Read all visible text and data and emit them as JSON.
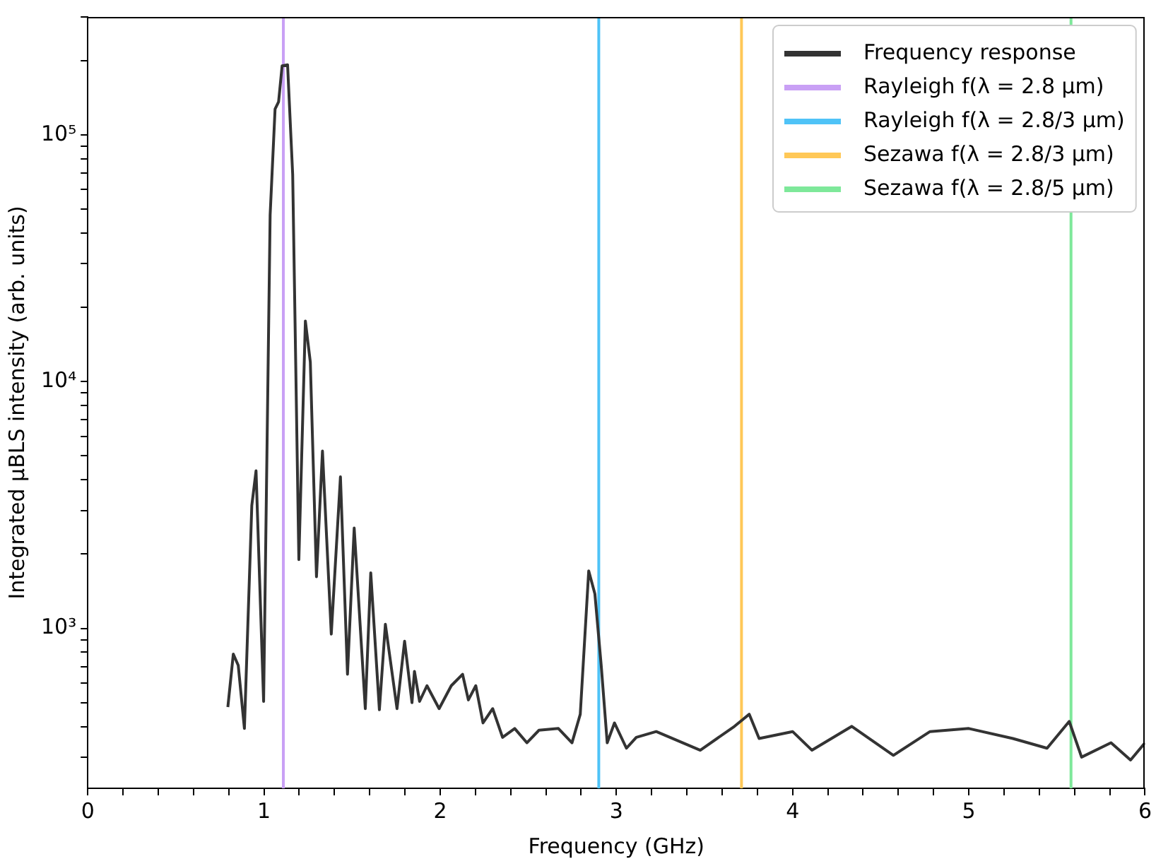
{
  "chart_data": {
    "type": "line",
    "xlabel": "Frequency (GHz)",
    "ylabel": "Integrated µBLS intensity (arb. units)",
    "log": "y",
    "legend": "top right",
    "grid": false,
    "marker": "none",
    "line_style": "solid",
    "xlim": [
      0,
      6
    ],
    "xticks": [
      0,
      {
        "value": 0.2,
        "label": null
      },
      {
        "value": 0.4,
        "label": null
      },
      {
        "value": 0.6,
        "label": null
      },
      {
        "value": 0.8,
        "label": null
      },
      1,
      {
        "value": 1.2,
        "label": null
      },
      {
        "value": 1.4,
        "label": null
      },
      {
        "value": 1.6,
        "label": null
      },
      {
        "value": 1.8,
        "label": null
      },
      2,
      {
        "value": 2.2,
        "label": null
      },
      {
        "value": 2.4,
        "label": null
      },
      {
        "value": 2.6,
        "label": null
      },
      {
        "value": 2.8,
        "label": null
      },
      3,
      {
        "value": 3.2,
        "label": null
      },
      {
        "value": 3.4,
        "label": null
      },
      {
        "value": 3.6,
        "label": null
      },
      {
        "value": 3.8,
        "label": null
      },
      4,
      {
        "value": 4.2,
        "label": null
      },
      {
        "value": 4.4,
        "label": null
      },
      {
        "value": 4.6,
        "label": null
      },
      {
        "value": 4.8,
        "label": null
      },
      5,
      {
        "value": 5.2,
        "label": null
      },
      {
        "value": 5.4,
        "label": null
      },
      {
        "value": 5.6,
        "label": null
      },
      {
        "value": 5.8,
        "label": null
      },
      6
    ],
    "ylim": [
      225,
      300000
    ],
    "yticks": [
      {
        "value": 300,
        "label": null
      },
      {
        "value": 400,
        "label": null
      },
      {
        "value": 500,
        "label": null
      },
      {
        "value": 600,
        "label": null
      },
      {
        "value": 700,
        "label": null
      },
      {
        "value": 800,
        "label": null
      },
      {
        "value": 900,
        "label": null
      },
      {
        "value": 1000,
        "label": "10³"
      },
      {
        "value": 2000,
        "label": null
      },
      {
        "value": 3000,
        "label": null
      },
      {
        "value": 4000,
        "label": null
      },
      {
        "value": 5000,
        "label": null
      },
      {
        "value": 6000,
        "label": null
      },
      {
        "value": 7000,
        "label": null
      },
      {
        "value": 8000,
        "label": null
      },
      {
        "value": 9000,
        "label": null
      },
      {
        "value": 10000,
        "label": "10⁴"
      },
      {
        "value": 20000,
        "label": null
      },
      {
        "value": 30000,
        "label": null
      },
      {
        "value": 40000,
        "label": null
      },
      {
        "value": 50000,
        "label": null
      },
      {
        "value": 60000,
        "label": null
      },
      {
        "value": 70000,
        "label": null
      },
      {
        "value": 80000,
        "label": null
      },
      {
        "value": 90000,
        "label": null
      },
      {
        "value": 100000,
        "label": "10⁵"
      },
      {
        "value": 200000,
        "label": null
      },
      {
        "value": 300000,
        "label": null
      }
    ],
    "series": [
      {
        "name": "Frequency response",
        "color": "#333333",
        "x": [
          0.795,
          0.826,
          0.854,
          0.889,
          0.931,
          0.955,
          0.998,
          1.035,
          1.063,
          1.083,
          1.103,
          1.134,
          1.163,
          1.198,
          1.235,
          1.263,
          1.298,
          1.332,
          1.382,
          1.434,
          1.474,
          1.512,
          1.575,
          1.606,
          1.655,
          1.689,
          1.755,
          1.798,
          1.84,
          1.854,
          1.883,
          1.925,
          1.994,
          2.063,
          2.127,
          2.16,
          2.202,
          2.243,
          2.298,
          2.354,
          2.423,
          2.492,
          2.561,
          2.671,
          2.748,
          2.795,
          2.843,
          2.878,
          2.914,
          2.948,
          2.989,
          3.057,
          3.113,
          3.226,
          3.476,
          3.67,
          3.754,
          3.81,
          4.0,
          4.11,
          4.336,
          4.572,
          4.78,
          5.0,
          5.25,
          5.444,
          5.57,
          5.64,
          5.807,
          5.918,
          6.0
        ],
        "values": [
          480,
          787,
          708,
          393,
          3150,
          4350,
          506,
          47300,
          127000,
          136000,
          190000,
          192000,
          68800,
          1900,
          17600,
          12000,
          1620,
          5230,
          948,
          4110,
          652,
          2550,
          473,
          1680,
          468,
          1040,
          473,
          888,
          500,
          670,
          506,
          586,
          473,
          586,
          652,
          513,
          586,
          414,
          473,
          362,
          393,
          344,
          387,
          393,
          344,
          449,
          1710,
          1380,
          706,
          344,
          414,
          327,
          362,
          382,
          321,
          401,
          449,
          358,
          382,
          321,
          401,
          306,
          382,
          393,
          358,
          327,
          420,
          301,
          344,
          293,
          344
        ]
      },
      {
        "name": "Rayleigh f(λ = 2.8 µm)",
        "color": "#c9a0f5",
        "x": [
          1.11,
          1.11
        ],
        "values": [
          225,
          300000
        ]
      },
      {
        "name": "Rayleigh f(λ = 2.8/3 µm)",
        "color": "#4fc3f7",
        "x": [
          2.9,
          2.9
        ],
        "values": [
          225,
          300000
        ]
      },
      {
        "name": "Sezawa f(λ = 2.8/3 µm)",
        "color": "#ffc857",
        "x": [
          3.71,
          3.71
        ],
        "values": [
          225,
          300000
        ]
      },
      {
        "name": "Sezawa f(λ = 2.8/5 µm)",
        "color": "#7ee89a",
        "x": [
          5.58,
          5.58
        ],
        "values": [
          225,
          300000
        ]
      }
    ]
  }
}
